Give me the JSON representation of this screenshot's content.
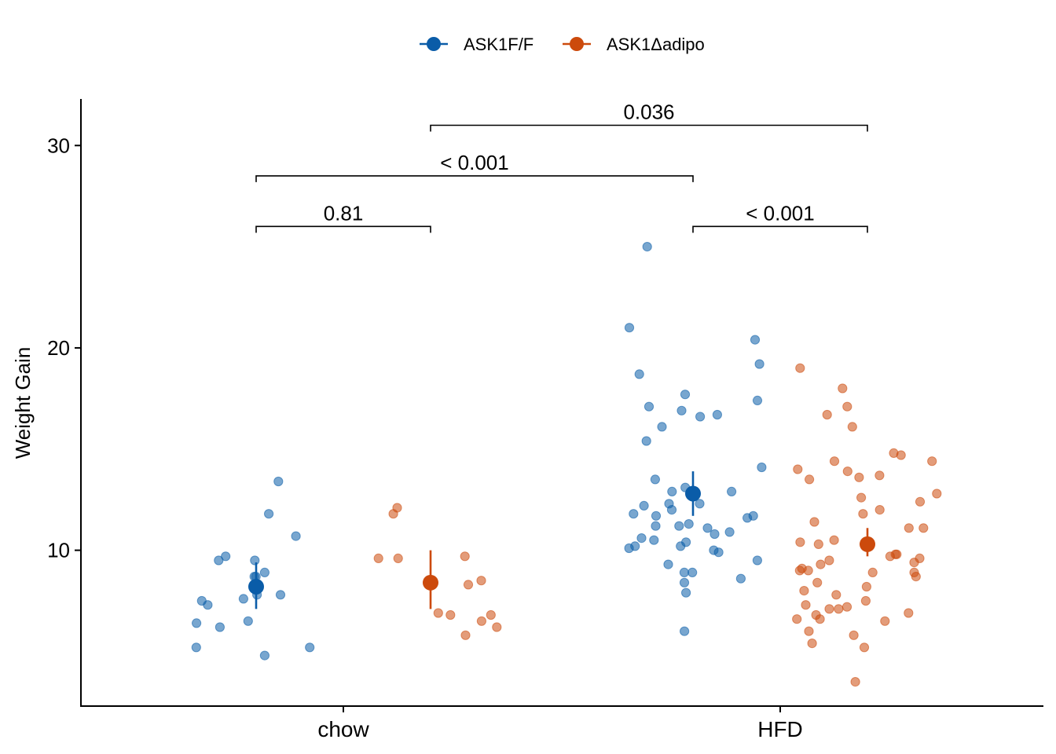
{
  "chart_data": {
    "type": "scatter",
    "subtype": "jitter-with-mean-and-error-bars",
    "title": "",
    "xlabel": "",
    "ylabel": "Weight Gain",
    "categories": [
      "chow",
      "HFD"
    ],
    "ylim": [
      2.3,
      32.3
    ],
    "yticks": [
      10,
      20,
      30
    ],
    "grid": false,
    "legend": {
      "position": "top"
    },
    "series": [
      {
        "name": "ASK1F/F",
        "color": "#0A5CA8",
        "summary": [
          {
            "category": "chow",
            "mean": 8.2,
            "lower": 7.1,
            "upper": 9.4
          },
          {
            "category": "HFD",
            "mean": 12.8,
            "lower": 11.7,
            "upper": 13.9
          }
        ],
        "points": [
          {
            "category": "chow",
            "values": [
              9.5,
              8.9,
              7.5,
              6.2,
              6.5,
              7.8,
              6.4,
              5.2,
              11.8,
              7.6,
              9.7,
              10.7,
              13.4,
              5.2,
              8.7,
              9.5,
              7.8,
              7.3,
              4.8,
              8.7
            ]
          },
          {
            "category": "HFD",
            "values": [
              25.0,
              21.0,
              20.4,
              19.2,
              18.7,
              17.7,
              17.4,
              17.1,
              16.9,
              16.6,
              16.7,
              16.1,
              15.4,
              14.1,
              13.1,
              13.5,
              12.3,
              12.3,
              12.2,
              12.9,
              12.9,
              12.0,
              11.8,
              11.7,
              11.7,
              11.6,
              11.3,
              11.2,
              11.1,
              11.2,
              10.9,
              10.8,
              10.6,
              10.5,
              10.4,
              10.2,
              10.1,
              10.2,
              9.9,
              10.0,
              9.5,
              9.3,
              8.9,
              8.9,
              8.4,
              8.6,
              7.9,
              6.0
            ]
          }
        ]
      },
      {
        "name": "ASK1Δadipo",
        "color": "#CC4A0C",
        "summary": [
          {
            "category": "chow",
            "mean": 8.4,
            "lower": 7.1,
            "upper": 10.0
          },
          {
            "category": "HFD",
            "mean": 10.3,
            "lower": 9.7,
            "upper": 11.1
          }
        ],
        "points": [
          {
            "category": "chow",
            "values": [
              12.1,
              11.8,
              9.7,
              9.6,
              9.6,
              8.3,
              8.5,
              6.2,
              6.8,
              6.5,
              5.8,
              6.8,
              6.9
            ]
          },
          {
            "category": "HFD",
            "values": [
              19.0,
              18.0,
              17.1,
              16.7,
              16.1,
              14.8,
              14.7,
              14.4,
              14.4,
              14.0,
              13.9,
              13.7,
              13.6,
              13.5,
              12.8,
              12.6,
              12.4,
              12.0,
              11.8,
              11.4,
              11.1,
              11.1,
              10.5,
              10.4,
              10.3,
              9.8,
              9.8,
              9.7,
              9.6,
              9.5,
              9.4,
              9.3,
              9.1,
              9.0,
              9.0,
              8.9,
              8.9,
              8.7,
              8.4,
              8.2,
              8.0,
              7.8,
              7.5,
              7.3,
              7.2,
              7.1,
              7.1,
              6.9,
              6.8,
              6.6,
              6.6,
              6.5,
              6.0,
              5.8,
              5.4,
              5.2,
              3.5
            ]
          }
        ]
      }
    ],
    "comparisons": [
      {
        "label": "0.81",
        "y": 26.0,
        "from": {
          "category": "chow",
          "series": "ASK1F/F"
        },
        "to": {
          "category": "chow",
          "series": "ASK1Δadipo"
        }
      },
      {
        "label": "< 0.001",
        "y": 26.0,
        "from": {
          "category": "HFD",
          "series": "ASK1F/F"
        },
        "to": {
          "category": "HFD",
          "series": "ASK1Δadipo"
        }
      },
      {
        "label": "< 0.001",
        "y": 28.5,
        "from": {
          "category": "chow",
          "series": "ASK1F/F"
        },
        "to": {
          "category": "HFD",
          "series": "ASK1F/F"
        }
      },
      {
        "label": "0.036",
        "y": 31.0,
        "from": {
          "category": "chow",
          "series": "ASK1Δadipo"
        },
        "to": {
          "category": "HFD",
          "series": "ASK1Δadipo"
        }
      }
    ]
  }
}
